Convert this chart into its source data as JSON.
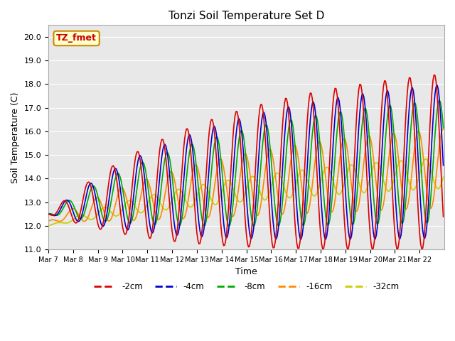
{
  "title": "Tonzi Soil Temperature Set D",
  "xlabel": "Time",
  "ylabel": "Soil Temperature (C)",
  "ylim": [
    11.0,
    20.5
  ],
  "yticks": [
    11.0,
    12.0,
    13.0,
    14.0,
    15.0,
    16.0,
    17.0,
    18.0,
    19.0,
    20.0
  ],
  "xtick_labels": [
    "Mar 7",
    "Mar 8",
    "Mar 9",
    "Mar 10",
    "Mar 11",
    "Mar 12",
    "Mar 13",
    "Mar 14",
    "Mar 15",
    "Mar 16",
    "Mar 17",
    "Mar 18",
    "Mar 19",
    "Mar 20",
    "Mar 21",
    "Mar 22"
  ],
  "legend_entries": [
    "-2cm",
    "-4cm",
    "-8cm",
    "-16cm",
    "-32cm"
  ],
  "line_colors": [
    "#dd0000",
    "#0000cc",
    "#00aa00",
    "#ff8800",
    "#cccc00"
  ],
  "annotation_text": "TZ_fmet",
  "annotation_color": "#cc0000",
  "annotation_bg": "#ffffcc",
  "annotation_edge": "#cc8800",
  "plot_bg_color": "#e8e8e8"
}
